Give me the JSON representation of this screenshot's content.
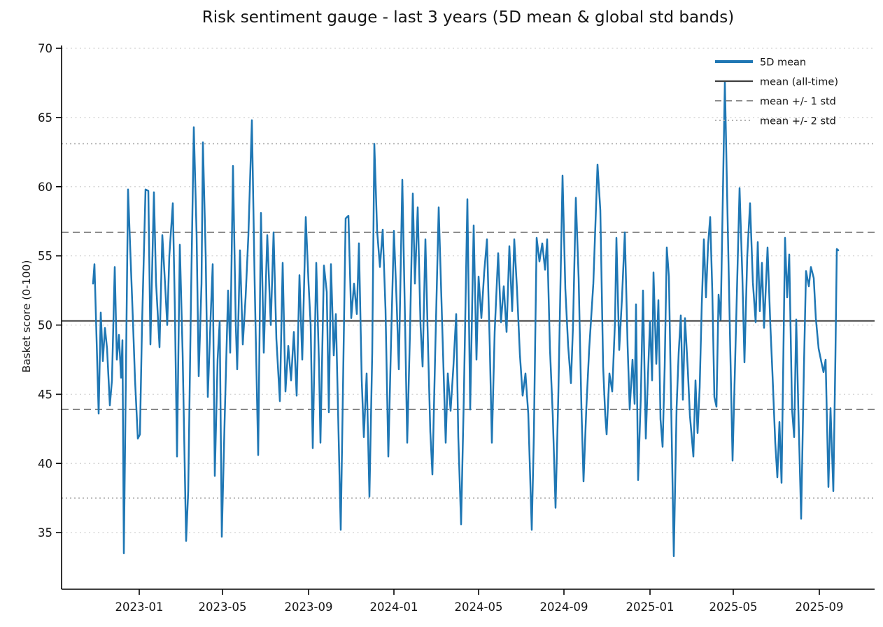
{
  "chart_data": {
    "type": "line",
    "title": "Risk sentiment gauge - last 3 years (5D mean & global std bands)",
    "ylabel": "Basket score (0-100)",
    "xlabel": "",
    "ylim": [
      30.9,
      70.2
    ],
    "yticks": [
      35,
      40,
      45,
      50,
      55,
      60,
      65,
      70
    ],
    "xticks": [
      {
        "label": "2023-01",
        "day": 66
      },
      {
        "label": "2023-05",
        "day": 185
      },
      {
        "label": "2023-09",
        "day": 308
      },
      {
        "label": "2024-01",
        "day": 430
      },
      {
        "label": "2024-05",
        "day": 551
      },
      {
        "label": "2024-09",
        "day": 673
      },
      {
        "label": "2025-01",
        "day": 796
      },
      {
        "label": "2025-05",
        "day": 915
      },
      {
        "label": "2025-09",
        "day": 1038
      }
    ],
    "grid": "horizontal dotted lines at every y tick",
    "legend": {
      "position": "upper right",
      "frame": false,
      "items": [
        {
          "label": "5D mean",
          "style": "series"
        },
        {
          "label": "mean (all-time)",
          "style": "mean"
        },
        {
          "label": "mean +/- 1 std",
          "style": "band1"
        },
        {
          "label": "mean +/- 2 std",
          "style": "band2"
        }
      ]
    },
    "stats": {
      "mean_all_time": 50.3,
      "std_all_time": 6.4,
      "mean_plus_1std": 56.7,
      "mean_minus_1std": 43.9,
      "mean_plus_2std": 63.1,
      "mean_minus_2std": 37.5
    },
    "colors": {
      "series": "#1f77b4",
      "mean": "#3f3f3f",
      "band1": "#7f7f7f",
      "band2": "#a8a8a8",
      "grid": "#d0d0d0",
      "axis": "#000000"
    },
    "series": [
      {
        "name": "5D mean",
        "x_start_date": "2022-10-27",
        "x_end_date": "2025-09-26",
        "x_unit": "days since start",
        "points": [
          [
            0,
            53.0
          ],
          [
            2,
            54.4
          ],
          [
            8,
            43.6
          ],
          [
            11,
            50.9
          ],
          [
            14,
            47.4
          ],
          [
            17,
            49.8
          ],
          [
            20,
            48.3
          ],
          [
            24,
            44.2
          ],
          [
            27,
            46.0
          ],
          [
            31,
            54.2
          ],
          [
            34,
            47.5
          ],
          [
            37,
            49.3
          ],
          [
            40,
            46.2
          ],
          [
            42,
            48.9
          ],
          [
            44,
            33.5
          ],
          [
            50,
            59.8
          ],
          [
            53,
            55.7
          ],
          [
            57,
            50.3
          ],
          [
            60,
            46.0
          ],
          [
            64,
            41.8
          ],
          [
            67,
            42.1
          ],
          [
            70,
            50.0
          ],
          [
            75,
            59.8
          ],
          [
            79,
            59.7
          ],
          [
            82,
            48.6
          ],
          [
            87,
            59.6
          ],
          [
            90,
            53.1
          ],
          [
            95,
            48.4
          ],
          [
            99,
            56.5
          ],
          [
            103,
            52.9
          ],
          [
            106,
            50.0
          ],
          [
            109,
            55.0
          ],
          [
            114,
            58.8
          ],
          [
            117,
            51.0
          ],
          [
            120,
            40.5
          ],
          [
            124,
            55.8
          ],
          [
            128,
            48.0
          ],
          [
            133,
            34.4
          ],
          [
            136,
            38.0
          ],
          [
            140,
            52.0
          ],
          [
            144,
            64.3
          ],
          [
            148,
            56.5
          ],
          [
            151,
            46.3
          ],
          [
            155,
            53.0
          ],
          [
            157,
            63.2
          ],
          [
            161,
            55.0
          ],
          [
            164,
            44.8
          ],
          [
            168,
            50.5
          ],
          [
            171,
            54.4
          ],
          [
            174,
            39.1
          ],
          [
            178,
            47.5
          ],
          [
            181,
            50.3
          ],
          [
            184,
            34.7
          ],
          [
            188,
            43.0
          ],
          [
            193,
            52.5
          ],
          [
            196,
            48.0
          ],
          [
            200,
            61.5
          ],
          [
            204,
            50.0
          ],
          [
            206,
            46.8
          ],
          [
            210,
            55.4
          ],
          [
            214,
            48.6
          ],
          [
            218,
            52.0
          ],
          [
            222,
            56.5
          ],
          [
            227,
            64.8
          ],
          [
            231,
            53.0
          ],
          [
            236,
            40.6
          ],
          [
            240,
            58.1
          ],
          [
            244,
            48.0
          ],
          [
            249,
            56.5
          ],
          [
            254,
            50.0
          ],
          [
            258,
            56.7
          ],
          [
            262,
            49.0
          ],
          [
            267,
            44.5
          ],
          [
            271,
            54.5
          ],
          [
            275,
            45.2
          ],
          [
            279,
            48.5
          ],
          [
            283,
            46.0
          ],
          [
            287,
            49.5
          ],
          [
            291,
            44.9
          ],
          [
            295,
            53.6
          ],
          [
            299,
            47.5
          ],
          [
            304,
            57.8
          ],
          [
            308,
            53.0
          ],
          [
            311,
            50.0
          ],
          [
            314,
            41.1
          ],
          [
            319,
            54.5
          ],
          [
            323,
            47.0
          ],
          [
            325,
            41.5
          ],
          [
            330,
            54.3
          ],
          [
            334,
            52.4
          ],
          [
            337,
            43.7
          ],
          [
            340,
            54.4
          ],
          [
            344,
            47.8
          ],
          [
            347,
            50.8
          ],
          [
            354,
            35.2
          ],
          [
            361,
            57.7
          ],
          [
            365,
            57.9
          ],
          [
            369,
            50.5
          ],
          [
            373,
            53.0
          ],
          [
            377,
            50.8
          ],
          [
            380,
            55.9
          ],
          [
            384,
            46.0
          ],
          [
            387,
            41.9
          ],
          [
            391,
            46.5
          ],
          [
            395,
            37.6
          ],
          [
            399,
            48.0
          ],
          [
            402,
            63.1
          ],
          [
            406,
            56.8
          ],
          [
            410,
            54.2
          ],
          [
            414,
            56.9
          ],
          [
            418,
            51.1
          ],
          [
            422,
            40.5
          ],
          [
            426,
            49.0
          ],
          [
            430,
            56.8
          ],
          [
            434,
            51.5
          ],
          [
            437,
            46.8
          ],
          [
            442,
            60.5
          ],
          [
            446,
            50.0
          ],
          [
            449,
            41.5
          ],
          [
            453,
            49.5
          ],
          [
            457,
            59.5
          ],
          [
            460,
            53.0
          ],
          [
            464,
            58.5
          ],
          [
            468,
            50.0
          ],
          [
            471,
            47.0
          ],
          [
            475,
            56.2
          ],
          [
            479,
            48.0
          ],
          [
            482,
            42.3
          ],
          [
            485,
            39.2
          ],
          [
            489,
            48.0
          ],
          [
            494,
            58.5
          ],
          [
            499,
            50.0
          ],
          [
            504,
            41.5
          ],
          [
            507,
            46.5
          ],
          [
            511,
            43.8
          ],
          [
            515,
            47.0
          ],
          [
            519,
            50.8
          ],
          [
            522,
            41.9
          ],
          [
            526,
            35.6
          ],
          [
            530,
            45.0
          ],
          [
            535,
            59.1
          ],
          [
            539,
            43.9
          ],
          [
            544,
            57.2
          ],
          [
            548,
            47.5
          ],
          [
            551,
            53.5
          ],
          [
            555,
            50.5
          ],
          [
            559,
            53.8
          ],
          [
            563,
            56.2
          ],
          [
            567,
            48.5
          ],
          [
            570,
            41.5
          ],
          [
            574,
            49.5
          ],
          [
            579,
            55.2
          ],
          [
            583,
            50.2
          ],
          [
            587,
            52.8
          ],
          [
            591,
            49.5
          ],
          [
            595,
            55.7
          ],
          [
            599,
            51.0
          ],
          [
            602,
            56.2
          ],
          [
            606,
            52.5
          ],
          [
            610,
            47.9
          ],
          [
            614,
            44.9
          ],
          [
            618,
            46.5
          ],
          [
            622,
            43.6
          ],
          [
            627,
            35.2
          ],
          [
            630,
            42.0
          ],
          [
            634,
            56.3
          ],
          [
            638,
            54.6
          ],
          [
            642,
            55.9
          ],
          [
            646,
            54.0
          ],
          [
            649,
            56.2
          ],
          [
            653,
            48.3
          ],
          [
            657,
            43.5
          ],
          [
            661,
            36.8
          ],
          [
            665,
            45.0
          ],
          [
            671,
            60.8
          ],
          [
            675,
            52.6
          ],
          [
            679,
            48.5
          ],
          [
            683,
            45.8
          ],
          [
            686,
            50.0
          ],
          [
            690,
            59.2
          ],
          [
            694,
            53.4
          ],
          [
            698,
            44.0
          ],
          [
            701,
            38.7
          ],
          [
            705,
            44.0
          ],
          [
            709,
            48.2
          ],
          [
            715,
            53.0
          ],
          [
            721,
            61.6
          ],
          [
            725,
            58.3
          ],
          [
            729,
            47.0
          ],
          [
            732,
            43.5
          ],
          [
            734,
            42.1
          ],
          [
            738,
            46.5
          ],
          [
            742,
            45.2
          ],
          [
            746,
            50.3
          ],
          [
            748,
            56.3
          ],
          [
            752,
            48.2
          ],
          [
            756,
            52.0
          ],
          [
            760,
            56.7
          ],
          [
            764,
            48.5
          ],
          [
            767,
            43.9
          ],
          [
            771,
            47.5
          ],
          [
            774,
            44.3
          ],
          [
            776,
            51.5
          ],
          [
            779,
            38.8
          ],
          [
            783,
            45.0
          ],
          [
            786,
            52.5
          ],
          [
            790,
            41.8
          ],
          [
            793,
            46.2
          ],
          [
            796,
            50.3
          ],
          [
            799,
            46.0
          ],
          [
            801,
            53.8
          ],
          [
            805,
            47.2
          ],
          [
            808,
            51.8
          ],
          [
            811,
            43.2
          ],
          [
            814,
            41.2
          ],
          [
            817,
            47.0
          ],
          [
            820,
            55.6
          ],
          [
            823,
            53.5
          ],
          [
            827,
            42.0
          ],
          [
            830,
            33.3
          ],
          [
            834,
            44.0
          ],
          [
            837,
            48.0
          ],
          [
            840,
            50.7
          ],
          [
            843,
            44.6
          ],
          [
            846,
            50.5
          ],
          [
            850,
            46.8
          ],
          [
            853,
            43.5
          ],
          [
            858,
            40.5
          ],
          [
            861,
            46.0
          ],
          [
            864,
            42.2
          ],
          [
            867,
            45.5
          ],
          [
            870,
            51.5
          ],
          [
            873,
            56.2
          ],
          [
            876,
            52.0
          ],
          [
            879,
            55.8
          ],
          [
            882,
            57.8
          ],
          [
            885,
            52.5
          ],
          [
            888,
            44.8
          ],
          [
            891,
            44.1
          ],
          [
            894,
            52.2
          ],
          [
            897,
            50.4
          ],
          [
            900,
            59.0
          ],
          [
            903,
            67.6
          ],
          [
            906,
            60.0
          ],
          [
            909,
            52.5
          ],
          [
            914,
            40.2
          ],
          [
            919,
            50.0
          ],
          [
            924,
            59.9
          ],
          [
            928,
            53.5
          ],
          [
            931,
            47.3
          ],
          [
            935,
            55.0
          ],
          [
            939,
            58.8
          ],
          [
            943,
            53.1
          ],
          [
            947,
            50.2
          ],
          [
            950,
            56.0
          ],
          [
            953,
            51.0
          ],
          [
            956,
            54.5
          ],
          [
            959,
            49.8
          ],
          [
            964,
            55.6
          ],
          [
            968,
            50.0
          ],
          [
            971,
            46.5
          ],
          [
            975,
            41.5
          ],
          [
            978,
            39.0
          ],
          [
            981,
            43.0
          ],
          [
            984,
            38.6
          ],
          [
            989,
            56.3
          ],
          [
            992,
            52.0
          ],
          [
            995,
            55.1
          ],
          [
            999,
            43.9
          ],
          [
            1002,
            41.9
          ],
          [
            1005,
            50.4
          ],
          [
            1008,
            43.9
          ],
          [
            1012,
            36.0
          ],
          [
            1016,
            47.0
          ],
          [
            1019,
            53.9
          ],
          [
            1023,
            52.8
          ],
          [
            1026,
            54.2
          ],
          [
            1030,
            53.4
          ],
          [
            1033,
            50.5
          ],
          [
            1037,
            48.3
          ],
          [
            1041,
            47.3
          ],
          [
            1044,
            46.6
          ],
          [
            1047,
            47.5
          ],
          [
            1051,
            38.3
          ],
          [
            1054,
            44.0
          ],
          [
            1058,
            38.0
          ],
          [
            1061,
            47.8
          ],
          [
            1063,
            55.5
          ],
          [
            1065,
            55.4
          ]
        ]
      }
    ]
  }
}
